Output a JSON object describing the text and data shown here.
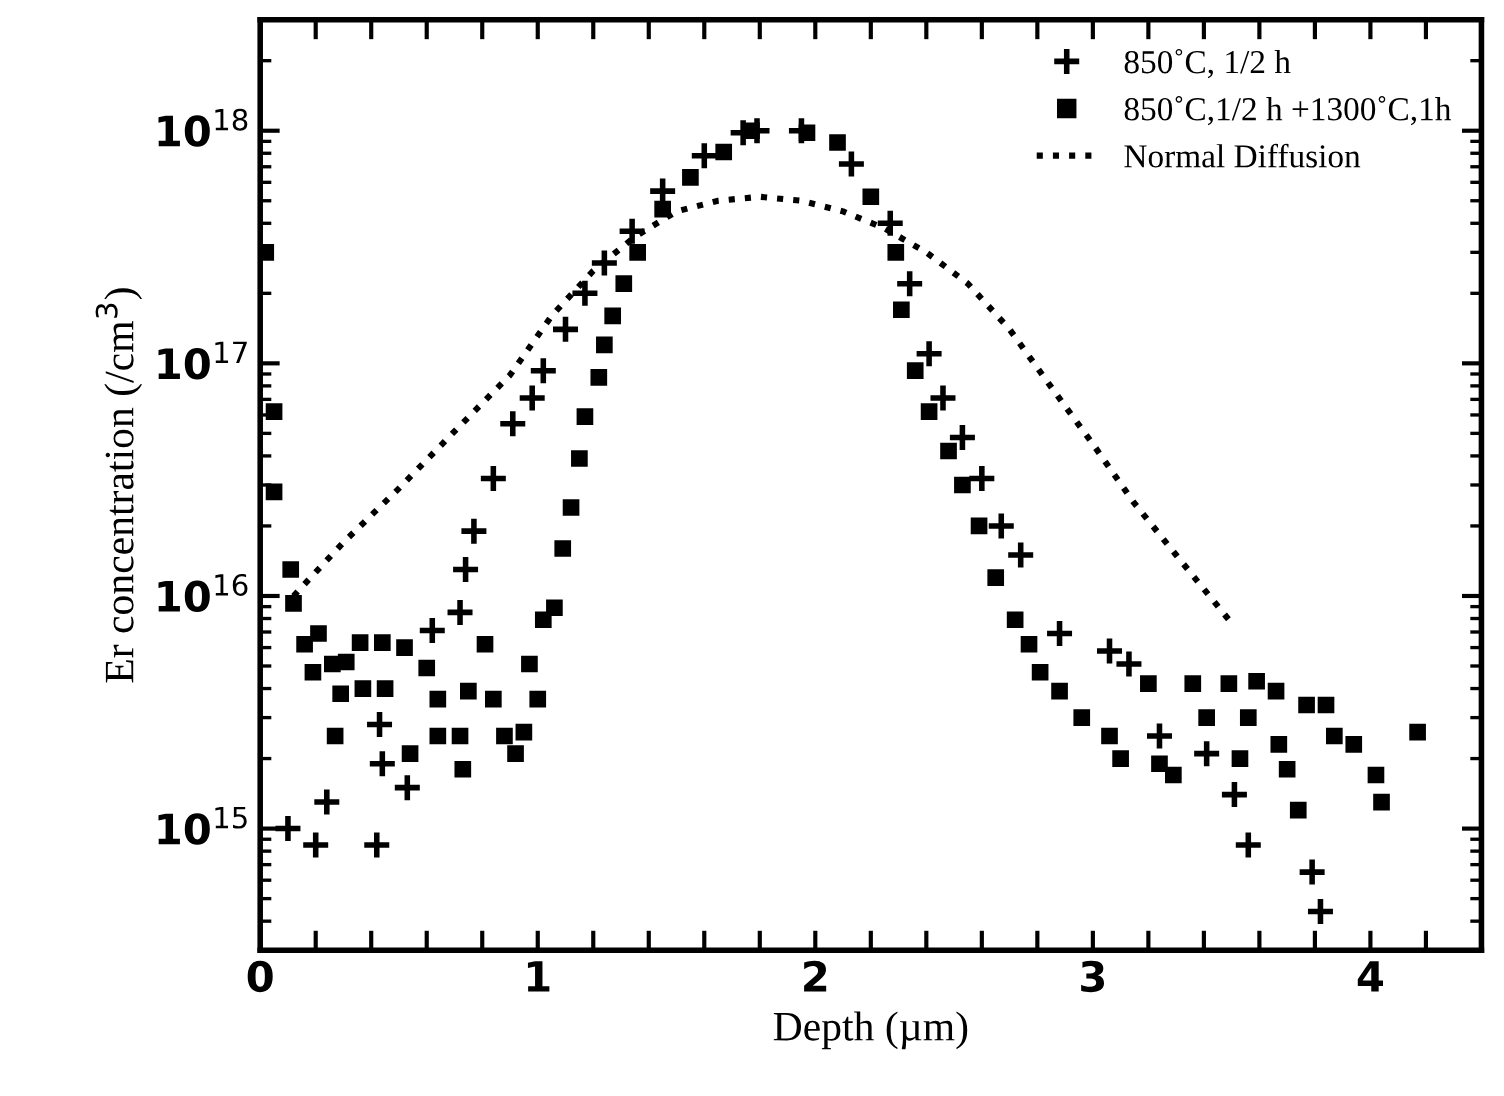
{
  "chart_data": {
    "type": "scatter",
    "xlabel": "Depth (µm)",
    "ylabel": "Er concentration (/cm$^{3}$)",
    "log": "y",
    "legend": "top right",
    "xlim": [
      0,
      4.4
    ],
    "ylim": [
      300000000000000.0,
      3e+18
    ],
    "xticks": [
      0,
      {
        "value": 0.2,
        "label": null
      },
      {
        "value": 0.4,
        "label": null
      },
      {
        "value": 0.6,
        "label": null
      },
      {
        "value": 0.8,
        "label": null
      },
      1,
      {
        "value": 1.2,
        "label": null
      },
      {
        "value": 1.4,
        "label": null
      },
      {
        "value": 1.6,
        "label": null
      },
      {
        "value": 1.8,
        "label": null
      },
      2,
      {
        "value": 2.2,
        "label": null
      },
      {
        "value": 2.4,
        "label": null
      },
      {
        "value": 2.6,
        "label": null
      },
      {
        "value": 2.8,
        "label": null
      },
      3,
      {
        "value": 3.2,
        "label": null
      },
      {
        "value": 3.4,
        "label": null
      },
      {
        "value": 3.6,
        "label": null
      },
      {
        "value": 3.8,
        "label": null
      },
      4,
      {
        "value": 4.2,
        "label": null
      }
    ],
    "yticks": [
      {
        "value": 1000000000000000.0,
        "label": "10$^{15}$"
      },
      {
        "value": 1e+16,
        "label": "10$^{16}$"
      },
      {
        "value": 1e+17,
        "label": "10$^{17}$"
      },
      {
        "value": 1e+18,
        "label": "10$^{18}$"
      }
    ],
    "series": [
      {
        "name": "850˚C, 1/2 h",
        "marker": "cross",
        "color": "#000000",
        "x": [
          0.1,
          0.2,
          0.24,
          0.42,
          0.43,
          0.44,
          0.53,
          0.62,
          0.72,
          0.74,
          0.77,
          0.84,
          0.91,
          0.98,
          1.02,
          1.1,
          1.17,
          1.24,
          1.34,
          1.45,
          1.6,
          1.74,
          1.79,
          1.95,
          2.13,
          2.27,
          2.34,
          2.41,
          2.46,
          2.53,
          2.6,
          2.67,
          2.74,
          2.88,
          3.06,
          3.13,
          3.24,
          3.41,
          3.51,
          3.56,
          3.79,
          3.82
        ],
        "values": [
          1000000000000000.0,
          850000000000000.0,
          1300000000000000.0,
          850000000000000.0,
          2800000000000000.0,
          1900000000000000.0,
          1500000000000000.0,
          7100000000000000.0,
          8500000000000000.0,
          1.3e+16,
          1.9e+16,
          3.2e+16,
          5.5e+16,
          7.1e+16,
          9.3e+16,
          1.4e+17,
          2e+17,
          2.7e+17,
          3.7e+17,
          5.5e+17,
          7.8e+17,
          9.8e+17,
          1e+18,
          1e+18,
          7.2e+17,
          4e+17,
          2.2e+17,
          1.1e+17,
          7.1e+16,
          4.8e+16,
          3.2e+16,
          2e+16,
          1.5e+16,
          6900000000000000.0,
          5800000000000000.0,
          5100000000000000.0,
          2500000000000000.0,
          2100000000000000.0,
          1400000000000000.0,
          850000000000000.0,
          650000000000000.0,
          440000000000000.0
        ]
      },
      {
        "name": "850˚C,1/2 h +1300˚C,1h",
        "marker": "square",
        "color": "#000000",
        "x": [
          0.02,
          0.05,
          0.05,
          0.11,
          0.12,
          0.16,
          0.19,
          0.21,
          0.26,
          0.27,
          0.29,
          0.31,
          0.36,
          0.37,
          0.44,
          0.45,
          0.52,
          0.54,
          0.6,
          0.64,
          0.64,
          0.72,
          0.73,
          0.75,
          0.81,
          0.84,
          0.88,
          0.92,
          0.95,
          0.97,
          1.0,
          1.02,
          1.06,
          1.09,
          1.12,
          1.15,
          1.17,
          1.22,
          1.24,
          1.27,
          1.31,
          1.36,
          1.45,
          1.55,
          1.67,
          1.77,
          1.97,
          2.08,
          2.2,
          2.29,
          2.31,
          2.36,
          2.41,
          2.48,
          2.53,
          2.59,
          2.65,
          2.72,
          2.77,
          2.81,
          2.88,
          2.96,
          3.06,
          3.1,
          3.2,
          3.24,
          3.29,
          3.36,
          3.41,
          3.49,
          3.53,
          3.56,
          3.59,
          3.66,
          3.67,
          3.7,
          3.74,
          3.77,
          3.84,
          3.87,
          3.94,
          4.02,
          4.04,
          4.17
        ],
        "values": [
          3e+17,
          6.2e+16,
          2.8e+16,
          1.3e+16,
          9300000000000000.0,
          6200000000000000.0,
          4700000000000000.0,
          6900000000000000.0,
          5100000000000000.0,
          2500000000000000.0,
          3800000000000000.0,
          5200000000000000.0,
          6300000000000000.0,
          4000000000000000.0,
          6300000000000000.0,
          4000000000000000.0,
          6000000000000000.0,
          2100000000000000.0,
          4900000000000000.0,
          3600000000000000.0,
          2500000000000000.0,
          2500000000000000.0,
          1800000000000000.0,
          3900000000000000.0,
          6200000000000000.0,
          3600000000000000.0,
          2500000000000000.0,
          2100000000000000.0,
          2600000000000000.0,
          5100000000000000.0,
          3600000000000000.0,
          7900000000000000.0,
          8900000000000000.0,
          1.6e+16,
          2.4e+16,
          3.9e+16,
          5.9e+16,
          8.7e+16,
          1.2e+17,
          1.6e+17,
          2.2e+17,
          3e+17,
          4.6e+17,
          6.3e+17,
          8.1e+17,
          1e+18,
          9.8e+17,
          8.9e+17,
          5.2e+17,
          3e+17,
          1.7e+17,
          9.3e+16,
          6.2e+16,
          4.2e+16,
          3e+16,
          2e+16,
          1.2e+16,
          7900000000000000.0,
          6200000000000000.0,
          4700000000000000.0,
          3900000000000000.0,
          3000000000000000.0,
          2500000000000000.0,
          2000000000000000.0,
          4200000000000000.0,
          1900000000000000.0,
          1700000000000000.0,
          4200000000000000.0,
          3000000000000000.0,
          4200000000000000.0,
          2000000000000000.0,
          3000000000000000.0,
          4300000000000000.0,
          3900000000000000.0,
          2300000000000000.0,
          1800000000000000.0,
          1200000000000000.0,
          3400000000000000.0,
          3400000000000000.0,
          2500000000000000.0,
          2300000000000000.0,
          1700000000000000.0,
          1300000000000000.0,
          2600000000000000.0
        ]
      },
      {
        "name": "Normal Diffusion",
        "type": "line",
        "marker": "none",
        "line_style": "dotted",
        "color": "#000000",
        "x": [
          0.12,
          0.3,
          0.5,
          0.7,
          0.9,
          1.05,
          1.2,
          1.35,
          1.5,
          1.65,
          1.8,
          1.95,
          2.1,
          2.25,
          2.4,
          2.55,
          2.7,
          2.85,
          3.0,
          3.15,
          3.3,
          3.49
        ],
        "values": [
          1e+16,
          1.7e+16,
          2.9e+16,
          5.1e+16,
          8.9e+16,
          1.6e+17,
          2.5e+17,
          3.5e+17,
          4.5e+17,
          5e+17,
          5.2e+17,
          5e+17,
          4.5e+17,
          3.8e+17,
          3e+17,
          2.2e+17,
          1.4e+17,
          7.9e+16,
          4.5e+16,
          2.5e+16,
          1.5e+16,
          7900000000000000.0
        ]
      }
    ]
  }
}
